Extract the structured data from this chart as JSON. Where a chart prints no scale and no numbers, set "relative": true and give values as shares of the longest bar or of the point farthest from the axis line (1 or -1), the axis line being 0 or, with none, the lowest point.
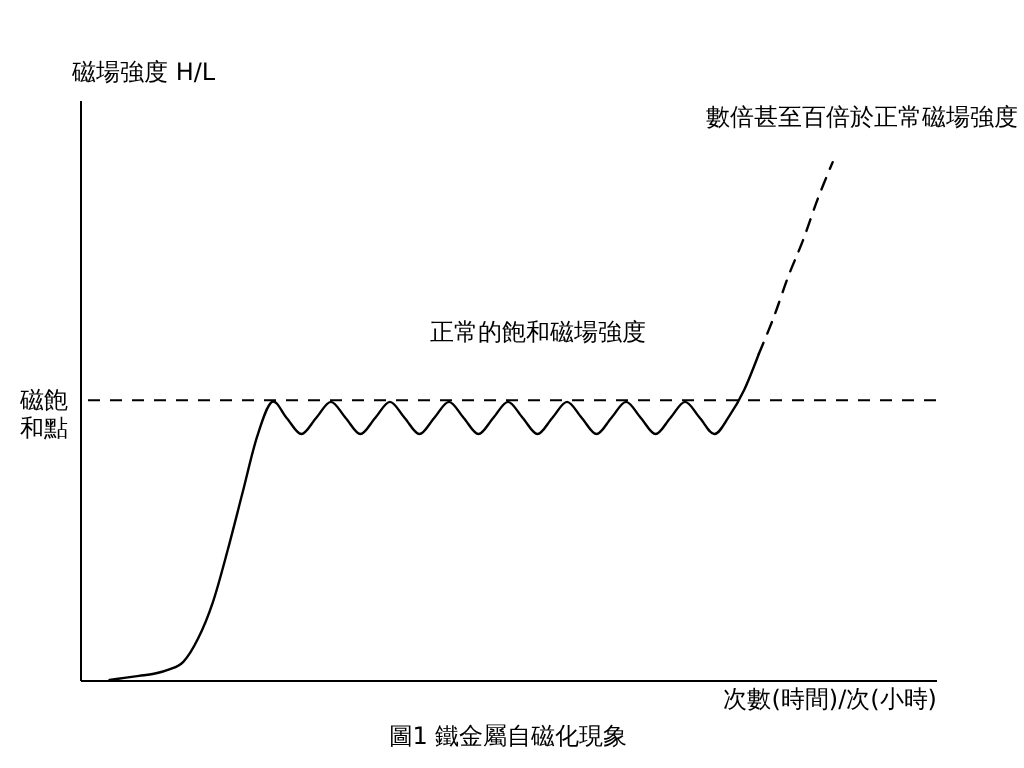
{
  "chart_data": {
    "type": "line",
    "relative": true,
    "title": "圖1  鐵金屬自磁化現象",
    "xlabel": "次數(時間)/次(小時)",
    "ylabel": "磁場強度 H/L",
    "tick_labels": false,
    "grid": false,
    "categories": [
      null,
      null,
      null,
      null,
      null,
      null,
      null,
      null,
      null,
      null,
      null,
      null,
      null,
      null,
      null,
      null,
      null,
      null,
      null,
      null,
      null,
      null,
      null,
      null,
      null,
      null,
      null,
      null,
      null,
      null,
      null,
      null,
      null,
      null,
      null,
      null,
      null,
      null,
      null,
      null,
      null,
      null,
      null,
      null,
      null,
      null,
      null,
      null,
      null,
      null
    ],
    "series": [
      {
        "color": "#000000",
        "line_style": "solid",
        "values": [
          0,
          0.004,
          0.008,
          0.012,
          0.02,
          0.035,
          0.08,
          0.15,
          0.25,
          0.36,
          0.47,
          0.537,
          0.506,
          0.475,
          0.506,
          0.537,
          0.506,
          0.475,
          0.506,
          0.537,
          0.506,
          0.475,
          0.506,
          0.537,
          0.506,
          0.475,
          0.506,
          0.537,
          0.506,
          0.475,
          0.506,
          0.537,
          0.506,
          0.475,
          0.506,
          0.537,
          0.506,
          0.475,
          0.506,
          0.537,
          0.506,
          0.475,
          0.51,
          0.56,
          0.63,
          null,
          null,
          null,
          null,
          null
        ]
      },
      {
        "color": "#000000",
        "line_style": "dashed",
        "values": [
          null,
          null,
          null,
          null,
          null,
          null,
          null,
          null,
          null,
          null,
          null,
          null,
          null,
          null,
          null,
          null,
          null,
          null,
          null,
          null,
          null,
          null,
          null,
          null,
          null,
          null,
          null,
          null,
          null,
          null,
          null,
          null,
          null,
          null,
          null,
          null,
          null,
          null,
          null,
          null,
          null,
          null,
          null,
          null,
          0.63,
          0.7,
          0.78,
          0.85,
          0.93,
          1
        ]
      }
    ],
    "ref_lines": [
      {
        "axis": "y",
        "value": 0.54,
        "label": "磁飽和點",
        "line_style": "dashed",
        "color": "#000000"
      }
    ],
    "annotations": [
      "正常的飽和磁場強度",
      "數倍甚至百倍於正常磁場強度"
    ]
  }
}
